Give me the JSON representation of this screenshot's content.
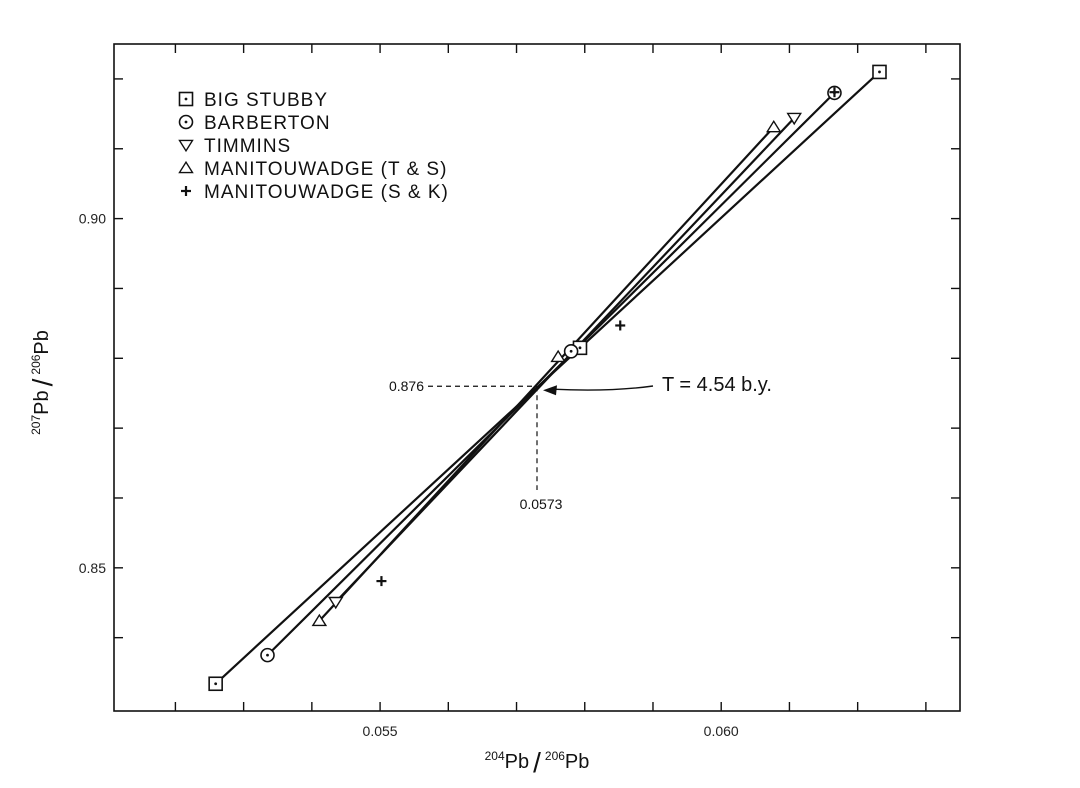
{
  "chart_data": {
    "type": "line",
    "xlabel": "204Pb/206Pb",
    "ylabel": "207Pb/206Pb",
    "xlabel_parts": {
      "num_sup": "204",
      "num": "Pb",
      "sep": "/",
      "den_sup": "206",
      "den": "Pb"
    },
    "ylabel_parts": {
      "num_sup": "207",
      "num": "Pb",
      "sep": "/",
      "den_sup": "206",
      "den": "Pb"
    },
    "xlim": [
      0.0511,
      0.0635
    ],
    "ylim": [
      0.8295,
      0.925
    ],
    "x_major_ticks": [
      0.055,
      0.06
    ],
    "x_tick_labels": [
      "0.055",
      "0.060"
    ],
    "x_minor_ticks": [
      0.052,
      0.053,
      0.054,
      0.056,
      0.057,
      0.058,
      0.059,
      0.061,
      0.062,
      0.063
    ],
    "y_major_ticks": [
      0.85,
      0.9
    ],
    "y_tick_labels": [
      "0.85",
      "0.90"
    ],
    "y_minor_ticks": [
      0.84,
      0.86,
      0.87,
      0.88,
      0.89,
      0.91,
      0.92
    ],
    "grid": false,
    "legend": {
      "position": "top-left",
      "entries": [
        {
          "label": "BIG   STUBBY",
          "marker": "square-dot"
        },
        {
          "label": "BARBERTON",
          "marker": "circle-dot"
        },
        {
          "label": "TIMMINS",
          "marker": "triangle-down"
        },
        {
          "label": "MANITOUWADGE   (T & S)",
          "marker": "triangle-up"
        },
        {
          "label": "MANITOUWADGE   (S & K)",
          "marker": "plus"
        }
      ]
    },
    "series": [
      {
        "name": "BIG STUBBY",
        "marker": "square-dot",
        "x": [
          0.05259,
          0.05793,
          0.06232
        ],
        "y": [
          0.8334,
          0.8815,
          0.921
        ]
      },
      {
        "name": "BARBERTON",
        "marker": "circle-dot",
        "x": [
          0.05335,
          0.0578,
          0.06166
        ],
        "y": [
          0.8375,
          0.881,
          0.918
        ]
      },
      {
        "name": "TIMMINS",
        "marker": "triangle-down",
        "x": [
          0.05435,
          0.06107
        ],
        "y": [
          0.8451,
          0.9144
        ]
      },
      {
        "name": "MANITOUWADGE (T & S)",
        "marker": "triangle-up",
        "x": [
          0.05411,
          0.05761,
          0.06077
        ],
        "y": [
          0.8424,
          0.8802,
          0.9131
        ]
      },
      {
        "name": "MANITOUWADGE (S & K)",
        "marker": "plus",
        "x": [
          0.05502,
          0.05852,
          0.06166
        ],
        "y": [
          0.8481,
          0.8847,
          0.9181
        ]
      }
    ],
    "lines": [
      {
        "x": [
          0.05259,
          0.06232
        ],
        "y": [
          0.8334,
          0.921
        ]
      },
      {
        "x": [
          0.05335,
          0.06166
        ],
        "y": [
          0.8375,
          0.918
        ]
      },
      {
        "x": [
          0.05435,
          0.06107
        ],
        "y": [
          0.8451,
          0.9144
        ]
      },
      {
        "x": [
          0.05411,
          0.06077
        ],
        "y": [
          0.8424,
          0.9131
        ]
      }
    ],
    "annotations": {
      "intersection": {
        "x": 0.0573,
        "y": 0.876
      },
      "x_value_label": "0.0573",
      "y_value_label": "0.876",
      "age_label": "T = 4.54  b.y."
    }
  }
}
